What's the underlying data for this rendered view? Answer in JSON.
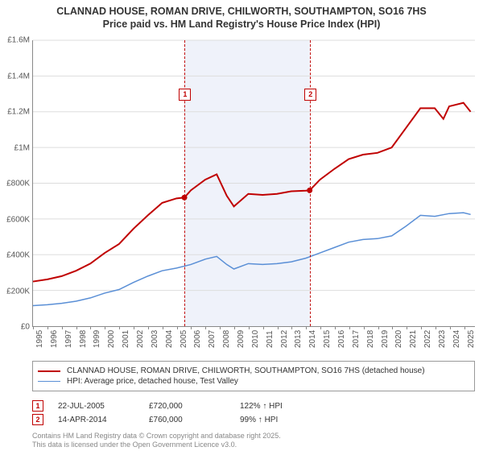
{
  "title": {
    "line1": "CLANNAD HOUSE, ROMAN DRIVE, CHILWORTH, SOUTHAMPTON, SO16 7HS",
    "line2": "Price paid vs. HM Land Registry's House Price Index (HPI)",
    "fontsize": 12.5,
    "fontweight": "bold"
  },
  "chart": {
    "type": "line",
    "background_color": "#ffffff",
    "grid_color": "#dddddd",
    "axis_color": "#888888",
    "ylim": [
      0,
      1600000
    ],
    "ytick_step": 200000,
    "ytick_labels": [
      "£0",
      "£200K",
      "£400K",
      "£600K",
      "£800K",
      "£1M",
      "£1.2M",
      "£1.4M",
      "£1.6M"
    ],
    "xlim": [
      1995,
      2025.8
    ],
    "xtick_years": [
      1995,
      1996,
      1997,
      1998,
      1999,
      2000,
      2001,
      2002,
      2003,
      2004,
      2005,
      2006,
      2007,
      2008,
      2009,
      2010,
      2011,
      2012,
      2013,
      2014,
      2015,
      2016,
      2017,
      2018,
      2019,
      2020,
      2021,
      2022,
      2023,
      2024,
      2025
    ],
    "label_fontsize": 10,
    "shaded_band": {
      "x_start": 2005.55,
      "x_end": 2014.28,
      "fill": "rgba(120,150,210,0.12)"
    },
    "sale_markers": [
      {
        "n": "1",
        "x": 2005.55,
        "box_y_offset": 60
      },
      {
        "n": "2",
        "x": 2014.28,
        "box_y_offset": 60
      }
    ],
    "series": [
      {
        "name": "price_paid",
        "label": "CLANNAD HOUSE, ROMAN DRIVE, CHILWORTH, SOUTHAMPTON, SO16 7HS (detached house)",
        "color": "#c00000",
        "line_width": 2,
        "points": [
          [
            1995,
            250000
          ],
          [
            1996,
            262000
          ],
          [
            1997,
            280000
          ],
          [
            1998,
            310000
          ],
          [
            1999,
            350000
          ],
          [
            2000,
            410000
          ],
          [
            2001,
            460000
          ],
          [
            2002,
            545000
          ],
          [
            2003,
            620000
          ],
          [
            2004,
            690000
          ],
          [
            2005,
            715000
          ],
          [
            2005.55,
            720000
          ],
          [
            2006,
            760000
          ],
          [
            2007,
            820000
          ],
          [
            2007.8,
            850000
          ],
          [
            2008.5,
            730000
          ],
          [
            2009,
            670000
          ],
          [
            2010,
            740000
          ],
          [
            2011,
            735000
          ],
          [
            2012,
            740000
          ],
          [
            2013,
            755000
          ],
          [
            2014,
            758000
          ],
          [
            2014.28,
            760000
          ],
          [
            2015,
            820000
          ],
          [
            2016,
            880000
          ],
          [
            2017,
            935000
          ],
          [
            2018,
            960000
          ],
          [
            2019,
            970000
          ],
          [
            2020,
            1000000
          ],
          [
            2021,
            1110000
          ],
          [
            2022,
            1220000
          ],
          [
            2023,
            1220000
          ],
          [
            2023.6,
            1160000
          ],
          [
            2024,
            1230000
          ],
          [
            2025,
            1250000
          ],
          [
            2025.5,
            1200000
          ]
        ]
      },
      {
        "name": "hpi",
        "label": "HPI: Average price, detached house, Test Valley",
        "color": "#5a8fd6",
        "line_width": 1.5,
        "points": [
          [
            1995,
            115000
          ],
          [
            1996,
            120000
          ],
          [
            1997,
            128000
          ],
          [
            1998,
            140000
          ],
          [
            1999,
            158000
          ],
          [
            2000,
            185000
          ],
          [
            2001,
            205000
          ],
          [
            2002,
            245000
          ],
          [
            2003,
            280000
          ],
          [
            2004,
            310000
          ],
          [
            2005,
            325000
          ],
          [
            2006,
            345000
          ],
          [
            2007,
            375000
          ],
          [
            2007.8,
            390000
          ],
          [
            2008.5,
            345000
          ],
          [
            2009,
            320000
          ],
          [
            2010,
            350000
          ],
          [
            2011,
            345000
          ],
          [
            2012,
            350000
          ],
          [
            2013,
            360000
          ],
          [
            2014,
            380000
          ],
          [
            2015,
            410000
          ],
          [
            2016,
            440000
          ],
          [
            2017,
            470000
          ],
          [
            2018,
            485000
          ],
          [
            2019,
            490000
          ],
          [
            2020,
            505000
          ],
          [
            2021,
            560000
          ],
          [
            2022,
            620000
          ],
          [
            2023,
            615000
          ],
          [
            2024,
            630000
          ],
          [
            2025,
            635000
          ],
          [
            2025.5,
            625000
          ]
        ]
      }
    ]
  },
  "legend": {
    "border_color": "#999999",
    "fontsize": 10
  },
  "sales_table": {
    "rows": [
      {
        "n": "1",
        "date": "22-JUL-2005",
        "price": "£720,000",
        "delta": "122% ↑ HPI"
      },
      {
        "n": "2",
        "date": "14-APR-2014",
        "price": "£760,000",
        "delta": "99% ↑ HPI"
      }
    ]
  },
  "footer": {
    "line1": "Contains HM Land Registry data © Crown copyright and database right 2025.",
    "line2": "This data is licensed under the Open Government Licence v3.0."
  }
}
